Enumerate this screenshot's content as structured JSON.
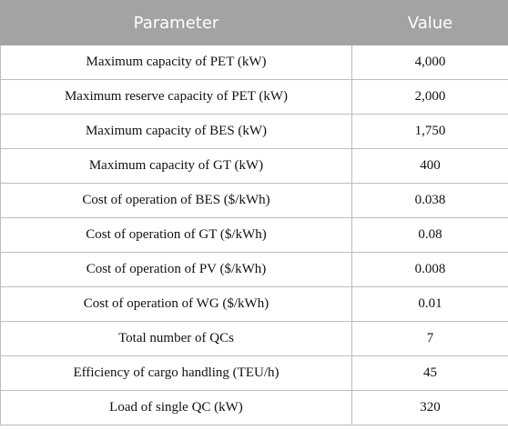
{
  "table": {
    "headers": {
      "parameter": "Parameter",
      "value": "Value"
    },
    "rows": [
      {
        "parameter": "Maximum capacity of PET (kW)",
        "value": "4,000"
      },
      {
        "parameter": "Maximum reserve capacity of PET (kW)",
        "value": "2,000"
      },
      {
        "parameter": "Maximum capacity of BES (kW)",
        "value": "1,750"
      },
      {
        "parameter": "Maximum capacity of GT (kW)",
        "value": "400"
      },
      {
        "parameter": "Cost of operation of BES ($/kWh)",
        "value": "0.038"
      },
      {
        "parameter": "Cost of operation of GT ($/kWh)",
        "value": "0.08"
      },
      {
        "parameter": "Cost of operation of PV ($/kWh)",
        "value": "0.008"
      },
      {
        "parameter": "Cost of operation of WG ($/kWh)",
        "value": "0.01"
      },
      {
        "parameter": "Total number of QCs",
        "value": "7"
      },
      {
        "parameter": "Efficiency of cargo handling (TEU/h)",
        "value": "45"
      },
      {
        "parameter": "Load of single QC (kW)",
        "value": "320"
      }
    ]
  }
}
